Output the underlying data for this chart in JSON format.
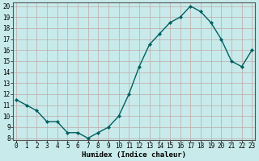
{
  "x": [
    0,
    1,
    2,
    3,
    4,
    5,
    6,
    7,
    8,
    9,
    10,
    11,
    12,
    13,
    14,
    15,
    16,
    17,
    18,
    19,
    20,
    21,
    22,
    23
  ],
  "y": [
    11.5,
    11.0,
    10.5,
    9.5,
    9.5,
    8.5,
    8.5,
    8.0,
    8.5,
    9.0,
    10.0,
    12.0,
    14.5,
    16.5,
    17.5,
    18.5,
    19.0,
    20.0,
    19.5,
    18.5,
    17.0,
    15.0,
    14.5,
    16.0
  ],
  "line_color": "#006060",
  "marker_color": "#006060",
  "bg_color": "#c8eaea",
  "grid_color": "#c0a8a8",
  "xlabel": "Humidex (Indice chaleur)",
  "ylim_min": 8,
  "ylim_max": 20,
  "xlim_min": 0,
  "xlim_max": 23,
  "yticks": [
    8,
    9,
    10,
    11,
    12,
    13,
    14,
    15,
    16,
    17,
    18,
    19,
    20
  ],
  "xticks": [
    0,
    1,
    2,
    3,
    4,
    5,
    6,
    7,
    8,
    9,
    10,
    11,
    12,
    13,
    14,
    15,
    16,
    17,
    18,
    19,
    20,
    21,
    22,
    23
  ],
  "xtick_labels": [
    "0",
    "1",
    "2",
    "3",
    "4",
    "5",
    "6",
    "7",
    "8",
    "9",
    "10",
    "11",
    "12",
    "13",
    "14",
    "15",
    "16",
    "17",
    "18",
    "19",
    "20",
    "21",
    "22",
    "23"
  ],
  "label_fontsize": 6.5,
  "tick_fontsize": 5.5,
  "linewidth": 1.0,
  "markersize": 2.0
}
